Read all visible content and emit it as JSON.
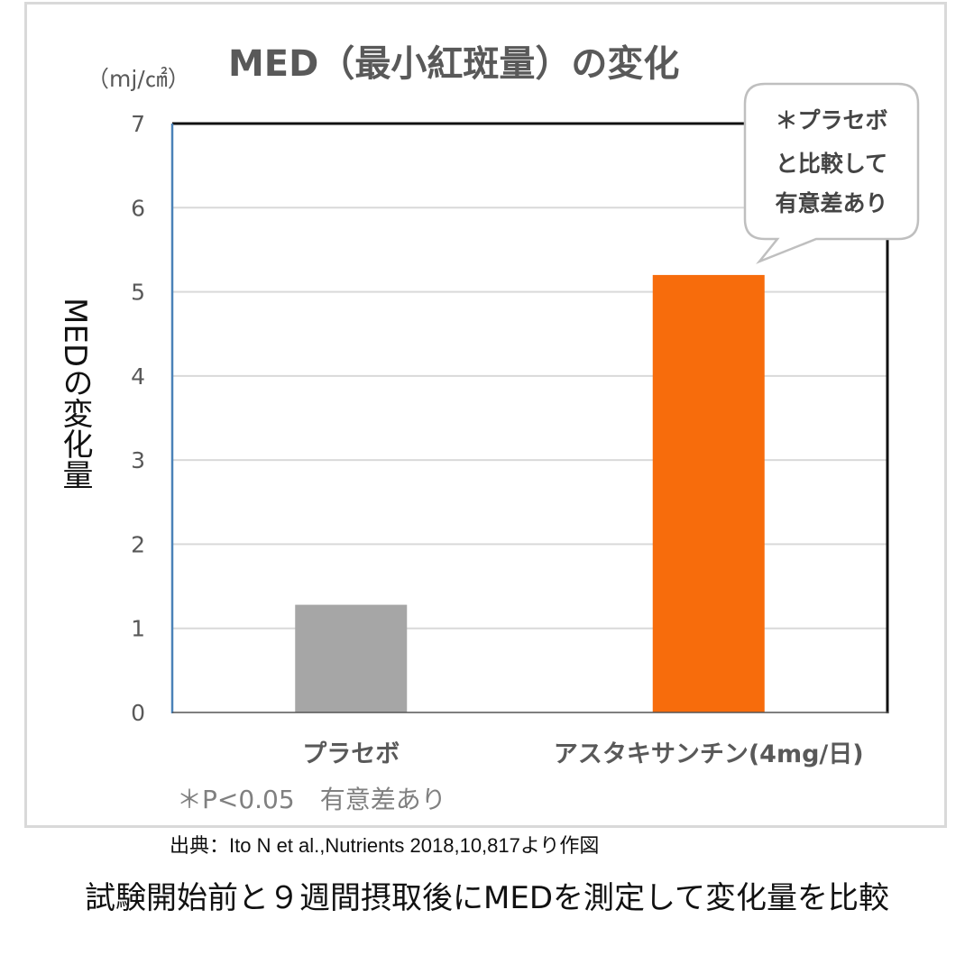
{
  "chart_data": {
    "type": "bar",
    "title": "MED（最小紅斑量）の変化",
    "unit_label": "（mj/㎠）",
    "ylabel": "MEDの変化量",
    "categories": [
      "プラセボ",
      "アスタキサンチン(4mg/日)"
    ],
    "values": [
      1.28,
      5.2
    ],
    "colors": [
      "#a6a6a6",
      "#f76c0c"
    ],
    "ylim": [
      0,
      7
    ],
    "yticks": [
      "0",
      "1",
      "2",
      "3",
      "4",
      "5",
      "6",
      "7"
    ],
    "grid": true,
    "callout": [
      "＊プラセボ",
      "と比較して",
      "有意差あり"
    ],
    "significance_note": "＊P<0.05　有意差あり"
  },
  "source_note": "出典：Ito N et al.,Nutrients 2018,10,817より作図",
  "caption": "試験開始前と９週間摂取後にMEDを測定して変化量を比較"
}
